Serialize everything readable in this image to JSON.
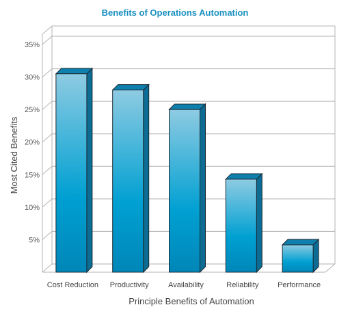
{
  "chart_data": {
    "type": "bar",
    "title": "Benefits of Operations Automation",
    "xlabel": "Principle Benefits of Automation",
    "ylabel": "Most Cited Benefits",
    "categories": [
      "Cost Reduction",
      "Productivity",
      "Availability",
      "Reliability",
      "Performance"
    ],
    "values": [
      30.5,
      28,
      25,
      14.3,
      4.2
    ],
    "yticks": [
      "5%",
      "10%",
      "15%",
      "20%",
      "25%",
      "30%",
      "35%"
    ],
    "ylim": [
      0,
      35
    ],
    "grid": true,
    "three_d": true,
    "colors": {
      "bar_top": "#8ecbe2",
      "bar_mid": "#00a0d2",
      "bar_bottom": "#0086b8",
      "bar_side": "#0d6c93",
      "bar_cap": "#0f80ad",
      "title": "#1a8fc0"
    }
  }
}
